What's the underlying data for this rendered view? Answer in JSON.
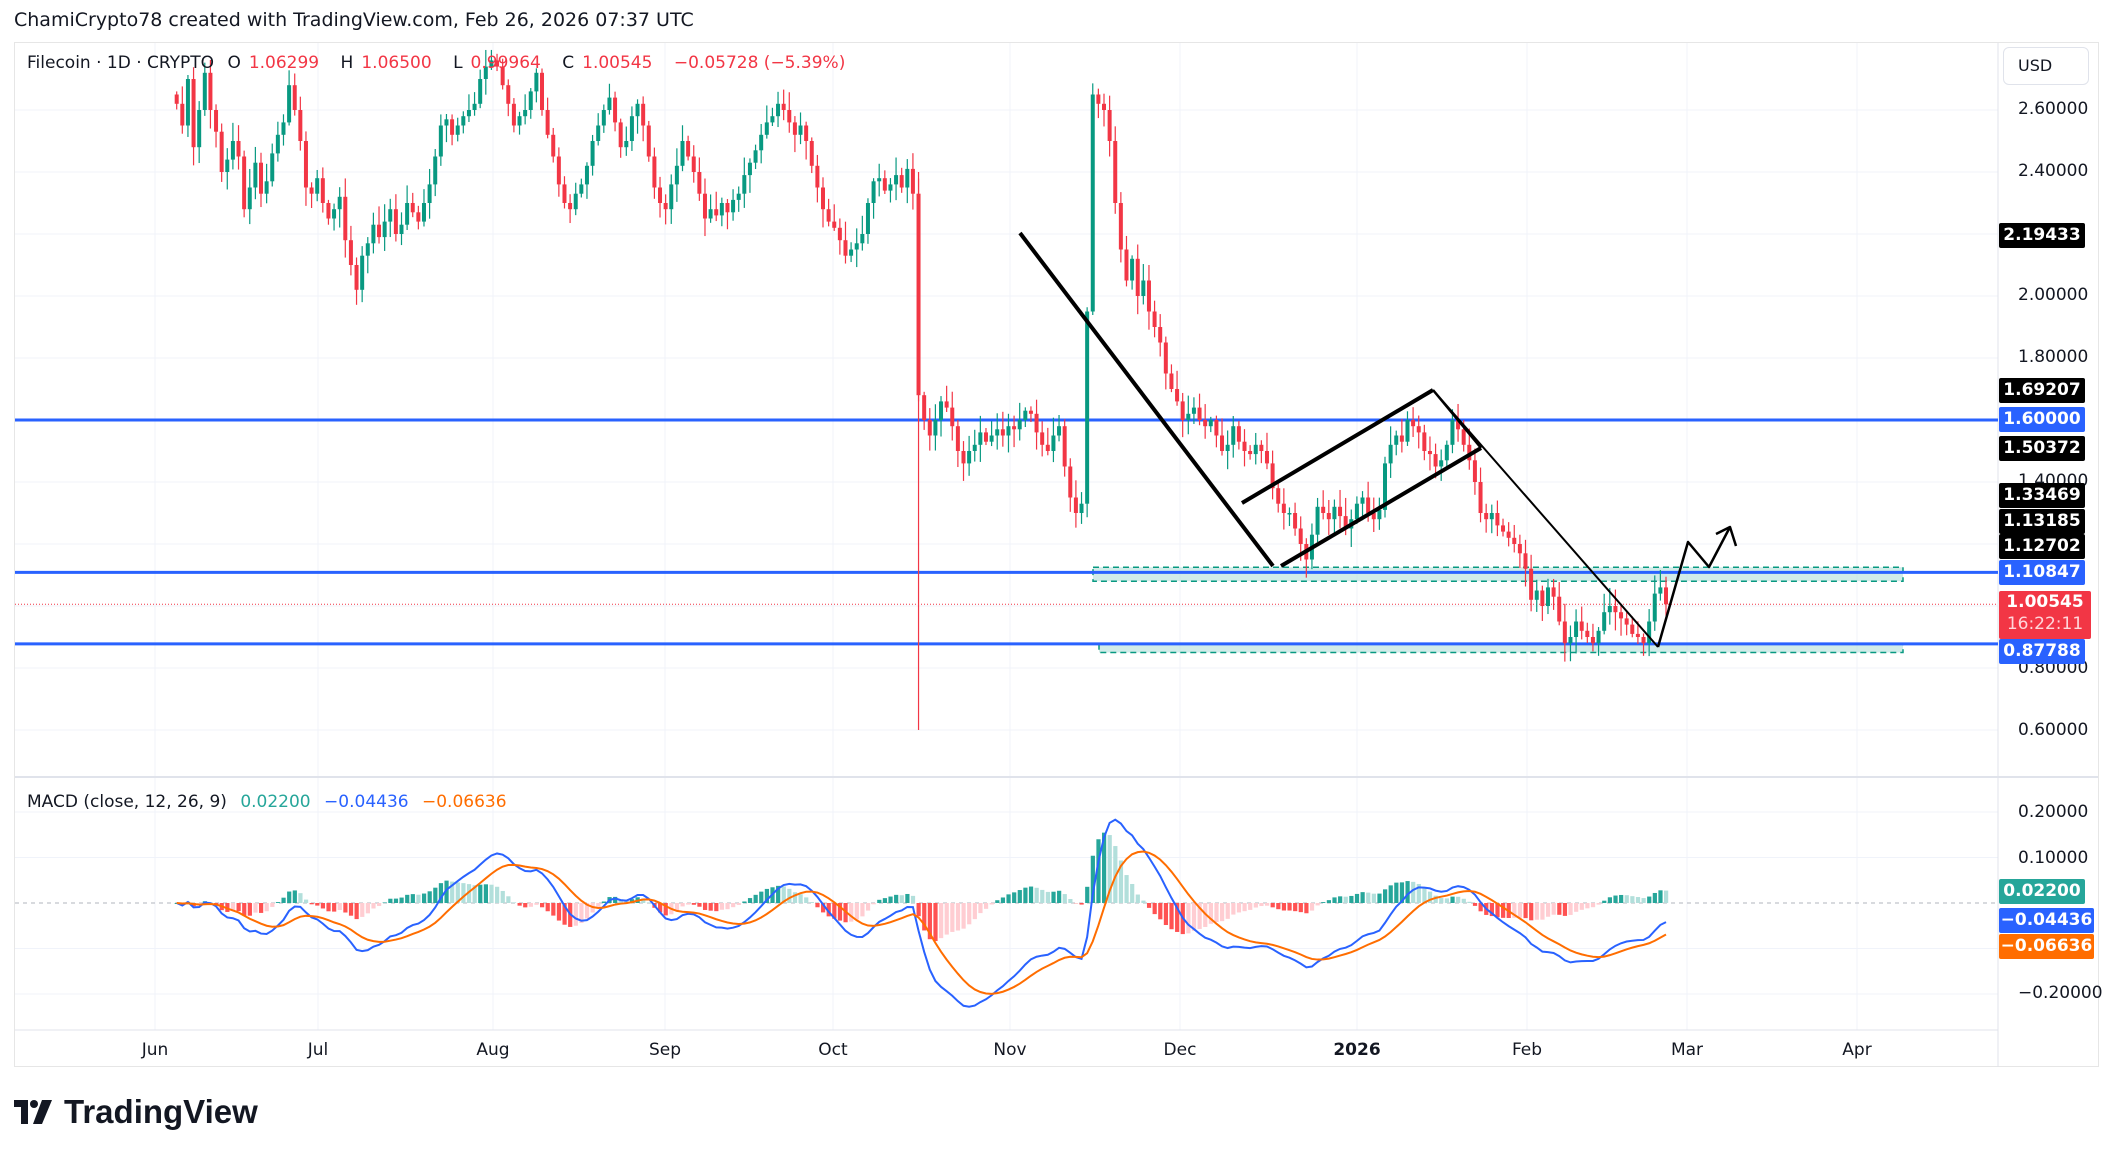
{
  "header": {
    "attribution": "ChamiCrypto78 created with TradingView.com, Feb 26, 2026 07:37 UTC"
  },
  "symbol": {
    "name": "Filecoin · 1D · CRYPTO",
    "open_label": "O",
    "open": "1.06299",
    "high_label": "H",
    "high": "1.06500",
    "low_label": "L",
    "low": "0.99964",
    "close_label": "C",
    "close": "1.00545",
    "change": "−0.05728 (−5.39%)"
  },
  "price_axis": {
    "currency": "USD",
    "ticks": [
      "2.60000",
      "2.40000",
      "2.00000",
      "1.80000",
      "1.40000",
      "0.80000",
      "0.60000"
    ],
    "tags": [
      {
        "value": "2.19433",
        "color": "#000000"
      },
      {
        "value": "1.69207",
        "color": "#000000"
      },
      {
        "value": "1.60000",
        "color": "#2962ff"
      },
      {
        "value": "1.50372",
        "color": "#000000"
      },
      {
        "value": "1.33469",
        "color": "#000000"
      },
      {
        "value": "1.13185",
        "color": "#000000"
      },
      {
        "value": "1.12702",
        "color": "#000000"
      },
      {
        "value": "1.10847",
        "color": "#2962ff"
      },
      {
        "value": "1.00545",
        "color": "#f23645"
      },
      {
        "value": "0.87788",
        "color": "#2962ff"
      }
    ],
    "countdown": "16:22:11"
  },
  "macd": {
    "label": "MACD (close, 12, 26, 9)",
    "hist": "0.02200",
    "macd": "−0.04436",
    "signal": "−0.06636",
    "ticks": [
      "0.20000",
      "0.10000",
      "−0.20000"
    ],
    "colors": {
      "hist": "#26a69a",
      "macd": "#2962ff",
      "signal": "#ff6d00"
    }
  },
  "time_axis": {
    "months": [
      "Jun",
      "Jul",
      "Aug",
      "Sep",
      "Oct",
      "Nov",
      "Dec",
      "2026",
      "Feb",
      "Mar",
      "Apr"
    ]
  },
  "branding": {
    "logo_text": "TradingView"
  },
  "colors": {
    "up": "#089981",
    "down": "#f23645",
    "level": "#2962ff",
    "zone": "#b2dfdb"
  },
  "chart_data": {
    "type": "candlestick",
    "title": "Filecoin · 1D · CRYPTO",
    "xlabel": "",
    "ylabel": "USD",
    "ylim": [
      0.5,
      2.75
    ],
    "x_ticks": [
      "Jun",
      "Jul",
      "Aug",
      "Sep",
      "Oct",
      "Nov",
      "Dec",
      "2026",
      "Feb",
      "Mar",
      "Apr"
    ],
    "horizontal_levels": [
      1.6,
      1.10847,
      0.87788
    ],
    "price_tags": [
      2.19433,
      1.69207,
      1.50372,
      1.33469,
      1.13185,
      1.12702,
      1.00545
    ],
    "zones": [
      {
        "top": 1.125,
        "bottom": 1.08
      },
      {
        "top": 0.88,
        "bottom": 0.85
      }
    ],
    "close_series_monthly_approx": {
      "May": 2.55,
      "Jun": 2.35,
      "Jul": 2.45,
      "Aug": 2.35,
      "Sep": 2.45,
      "Oct": 1.5,
      "Nov": 2.0,
      "Dec": 1.3,
      "Jan": 1.55,
      "Feb": 0.93,
      "Feb-26": 1.00545
    },
    "last_ohlc": {
      "open": 1.06299,
      "high": 1.065,
      "low": 0.99964,
      "close": 1.00545,
      "change": -0.05728,
      "change_pct": -5.39
    },
    "macd": {
      "params": [
        12,
        26,
        9
      ],
      "hist": 0.022,
      "macd": -0.04436,
      "signal": -0.06636,
      "ylim": [
        -0.25,
        0.25
      ]
    },
    "closes": [
      2.62,
      2.55,
      2.7,
      2.48,
      2.6,
      2.72,
      2.6,
      2.53,
      2.4,
      2.44,
      2.5,
      2.45,
      2.28,
      2.35,
      2.43,
      2.33,
      2.37,
      2.46,
      2.52,
      2.56,
      2.68,
      2.6,
      2.5,
      2.35,
      2.33,
      2.38,
      2.3,
      2.25,
      2.28,
      2.32,
      2.18,
      2.1,
      2.02,
      2.13,
      2.17,
      2.23,
      2.19,
      2.24,
      2.28,
      2.2,
      2.23,
      2.3,
      2.27,
      2.24,
      2.3,
      2.36,
      2.45,
      2.55,
      2.57,
      2.52,
      2.55,
      2.58,
      2.6,
      2.62,
      2.7,
      2.74,
      2.76,
      2.74,
      2.68,
      2.62,
      2.55,
      2.58,
      2.6,
      2.66,
      2.72,
      2.6,
      2.52,
      2.45,
      2.36,
      2.3,
      2.28,
      2.33,
      2.36,
      2.42,
      2.5,
      2.55,
      2.6,
      2.64,
      2.56,
      2.48,
      2.5,
      2.58,
      2.62,
      2.55,
      2.45,
      2.35,
      2.3,
      2.28,
      2.36,
      2.42,
      2.5,
      2.45,
      2.4,
      2.33,
      2.25,
      2.28,
      2.26,
      2.3,
      2.27,
      2.31,
      2.33,
      2.39,
      2.43,
      2.47,
      2.52,
      2.56,
      2.58,
      2.62,
      2.6,
      2.56,
      2.52,
      2.55,
      2.5,
      2.42,
      2.35,
      2.28,
      2.24,
      2.22,
      2.18,
      2.13,
      2.15,
      2.17,
      2.2,
      2.3,
      2.37,
      2.38,
      2.34,
      2.36,
      2.39,
      2.35,
      2.41,
      2.33,
      1.68,
      1.6,
      1.55,
      1.6,
      1.66,
      1.64,
      1.58,
      1.5,
      1.46,
      1.5,
      1.52,
      1.56,
      1.53,
      1.55,
      1.57,
      1.55,
      1.58,
      1.57,
      1.6,
      1.63,
      1.62,
      1.56,
      1.52,
      1.5,
      1.55,
      1.58,
      1.45,
      1.35,
      1.3,
      1.33,
      1.95,
      2.65,
      2.62,
      2.6,
      2.5,
      2.3,
      2.15,
      2.05,
      2.12,
      2.0,
      2.05,
      1.95,
      1.9,
      1.85,
      1.75,
      1.7,
      1.66,
      1.6,
      1.62,
      1.64,
      1.6,
      1.58,
      1.6,
      1.55,
      1.5,
      1.52,
      1.58,
      1.53,
      1.5,
      1.49,
      1.52,
      1.5,
      1.46,
      1.38,
      1.33,
      1.3,
      1.3,
      1.25,
      1.2,
      1.15,
      1.23,
      1.32,
      1.3,
      1.28,
      1.32,
      1.29,
      1.25,
      1.28,
      1.33,
      1.35,
      1.3,
      1.28,
      1.31,
      1.46,
      1.52,
      1.55,
      1.53,
      1.6,
      1.58,
      1.56,
      1.5,
      1.49,
      1.45,
      1.47,
      1.52,
      1.6,
      1.57,
      1.52,
      1.47,
      1.4,
      1.3,
      1.28,
      1.3,
      1.26,
      1.24,
      1.22,
      1.2,
      1.17,
      1.12,
      1.02,
      1.05,
      1.0,
      1.06,
      1.03,
      0.95,
      0.88,
      0.9,
      0.95,
      0.92,
      0.9,
      0.88,
      0.92,
      0.98,
      1.0,
      0.98,
      0.96,
      0.94,
      0.91,
      0.9,
      0.88,
      0.95,
      1.04,
      1.06,
      1.00545
    ]
  }
}
